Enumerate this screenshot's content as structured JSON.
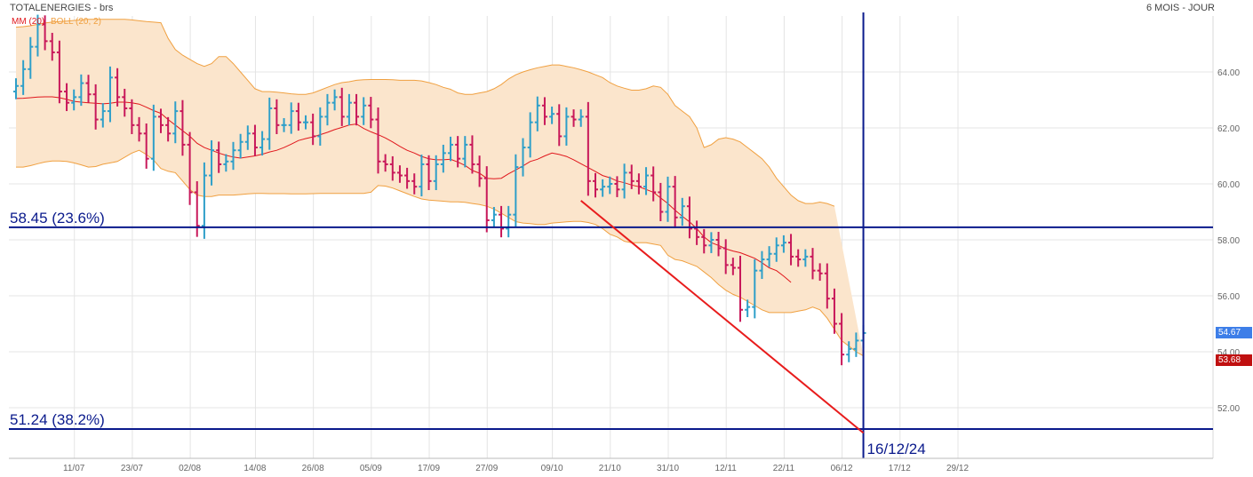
{
  "header": {
    "title": "TOTALENERGIES - brs",
    "period": "6 MOIS - JOUR",
    "mm_label": "MM (20)",
    "boll_label": "BOLL (20, 2)"
  },
  "colors": {
    "bull": "#2e9fc9",
    "bear": "#c8185a",
    "ma": "#e0171c",
    "boll_line": "#f0a040",
    "boll_fill": "#fbe5cc",
    "fib_line": "#0a1a8c",
    "trend": "#e81c1c",
    "grid": "#e4e4e4",
    "tag_last": "#3d7ee8",
    "tag_ref": "#c01010"
  },
  "annotations": {
    "fib_236": {
      "label": "58.45  (23.6%)",
      "price": 58.45
    },
    "fib_382": {
      "label": "51.24  (38.2%)",
      "price": 51.24
    },
    "date_marker": {
      "label": "16/12/24",
      "index": 117
    },
    "trendline": {
      "from": {
        "index": 78,
        "price": 59.4
      },
      "to": {
        "index": 117,
        "price": 51.1
      }
    }
  },
  "price_tags": {
    "last": "54.67",
    "ref": "53.68",
    "last_value": 54.67,
    "ref_value": 53.68
  },
  "chart_data": {
    "type": "ohlc",
    "title": "TOTALENERGIES - brs",
    "xlabel": "",
    "ylabel": "",
    "ylim": [
      50.5,
      66.2
    ],
    "yticks": [
      52.0,
      54.0,
      56.0,
      58.0,
      60.0,
      62.0,
      64.0
    ],
    "ytick_labels": [
      "52.00",
      "54.00",
      "56.00",
      "58.00",
      "60.00",
      "62.00",
      "64.00"
    ],
    "xtick_labels": [
      "11/07",
      "23/07",
      "02/08",
      "14/08",
      "26/08",
      "05/09",
      "17/09",
      "27/09",
      "09/10",
      "21/10",
      "31/10",
      "12/11",
      "22/11",
      "06/12",
      "17/12",
      "29/12"
    ],
    "xtick_index": [
      8,
      16,
      24,
      33,
      41,
      49,
      57,
      65,
      74,
      82,
      90,
      98,
      106,
      114,
      122,
      130
    ],
    "n_slots": 134,
    "close": [
      63.5,
      64.1,
      64.9,
      65.7,
      65.1,
      64.7,
      63.3,
      62.9,
      63.1,
      63.6,
      63.2,
      62.3,
      62.6,
      63.8,
      63.1,
      62.7,
      62.1,
      61.8,
      60.9,
      62.4,
      62.1,
      61.8,
      62.6,
      61.4,
      59.7,
      58.5,
      60.3,
      61.2,
      60.7,
      60.8,
      61.2,
      61.5,
      61.8,
      61.3,
      61.6,
      62.7,
      62.1,
      62.1,
      62.6,
      62.2,
      62.2,
      61.7,
      62.4,
      62.9,
      63.1,
      62.4,
      62.9,
      62.4,
      62.8,
      62.3,
      60.8,
      60.7,
      60.4,
      60.3,
      60.1,
      59.9,
      60.7,
      60.1,
      60.7,
      61.1,
      61.4,
      60.9,
      61.4,
      60.7,
      60.2,
      58.7,
      58.9,
      58.4,
      58.9,
      60.6,
      61.3,
      62.2,
      62.8,
      62.4,
      62.5,
      61.7,
      62.4,
      62.3,
      62.4,
      60.1,
      59.8,
      59.9,
      60.0,
      59.8,
      60.4,
      60.1,
      59.9,
      60.3,
      59.7,
      59.0,
      59.9,
      58.8,
      59.2,
      58.4,
      58.1,
      57.8,
      58.0,
      57.7,
      57.1,
      57.0,
      55.5,
      55.6,
      56.9,
      57.3,
      57.5,
      57.8,
      57.9,
      57.4,
      57.3,
      57.4,
      56.9,
      56.8,
      55.9,
      55.0,
      53.9,
      54.1,
      54.4,
      54.67
    ],
    "open": [
      63.3,
      63.5,
      64.1,
      64.9,
      65.7,
      65.1,
      64.7,
      63.3,
      62.9,
      63.1,
      63.6,
      63.2,
      62.3,
      62.6,
      63.8,
      63.1,
      62.7,
      62.1,
      61.8,
      60.9,
      62.4,
      62.1,
      61.8,
      62.6,
      61.4,
      59.7,
      58.5,
      60.3,
      61.2,
      60.7,
      60.8,
      61.2,
      61.5,
      61.8,
      61.3,
      61.6,
      62.7,
      62.1,
      62.1,
      62.6,
      62.2,
      62.2,
      61.7,
      62.4,
      62.9,
      63.1,
      62.4,
      62.9,
      62.4,
      62.8,
      62.3,
      60.8,
      60.7,
      60.4,
      60.3,
      60.1,
      59.9,
      60.7,
      60.1,
      60.7,
      61.1,
      61.4,
      60.9,
      61.4,
      60.7,
      60.2,
      58.7,
      58.9,
      58.4,
      58.9,
      60.6,
      61.3,
      62.2,
      62.8,
      62.4,
      62.5,
      61.7,
      62.4,
      62.3,
      62.4,
      60.1,
      59.8,
      59.9,
      60.0,
      59.8,
      60.4,
      60.1,
      59.9,
      60.3,
      59.7,
      59.0,
      59.9,
      58.8,
      59.2,
      58.4,
      58.1,
      57.8,
      58.0,
      57.7,
      57.1,
      57.0,
      55.5,
      55.6,
      56.9,
      57.3,
      57.5,
      57.8,
      57.9,
      57.4,
      57.3,
      57.4,
      56.9,
      56.8,
      55.9,
      55.0,
      53.9,
      54.1,
      54.4
    ],
    "ma20": [
      63.05,
      63.06,
      63.08,
      63.1,
      63.11,
      63.11,
      63.08,
      63.02,
      62.95,
      62.92,
      62.9,
      62.88,
      62.86,
      62.88,
      62.92,
      62.92,
      62.9,
      62.85,
      62.74,
      62.62,
      62.52,
      62.3,
      62.1,
      61.9,
      61.7,
      61.45,
      61.3,
      61.2,
      61.1,
      61.02,
      60.96,
      60.92,
      60.96,
      61.0,
      61.06,
      61.14,
      61.2,
      61.3,
      61.42,
      61.55,
      61.62,
      61.68,
      61.76,
      61.84,
      61.94,
      62.02,
      62.1,
      62.14,
      61.98,
      61.86,
      61.76,
      61.64,
      61.5,
      61.34,
      61.2,
      61.1,
      60.98,
      60.9,
      60.86,
      60.86,
      60.88,
      60.78,
      60.66,
      60.48,
      60.38,
      60.2,
      60.18,
      60.2,
      60.36,
      60.5,
      60.64,
      60.8,
      60.88,
      61.0,
      61.1,
      61.05,
      60.98,
      60.86,
      60.72,
      60.58,
      60.44,
      60.3,
      60.22,
      60.1,
      60.04,
      59.96,
      59.9,
      59.8,
      59.7,
      59.5,
      59.3,
      59.06,
      58.84,
      58.64,
      58.4,
      58.1,
      57.9,
      57.8,
      57.68,
      57.6,
      57.54,
      57.44,
      57.34,
      57.18,
      57.0,
      56.9,
      56.7,
      56.48
    ],
    "boll_upper": [
      65.6,
      65.62,
      65.65,
      65.7,
      65.75,
      65.78,
      65.8,
      65.82,
      65.84,
      65.86,
      65.88,
      65.88,
      65.88,
      65.88,
      65.88,
      65.88,
      65.86,
      65.83,
      65.8,
      65.78,
      65.76,
      65.2,
      64.8,
      64.6,
      64.45,
      64.3,
      64.2,
      64.3,
      64.55,
      64.55,
      64.3,
      64.0,
      63.7,
      63.4,
      63.3,
      63.3,
      63.28,
      63.25,
      63.22,
      63.2,
      63.2,
      63.25,
      63.35,
      63.45,
      63.55,
      63.62,
      63.65,
      63.7,
      63.72,
      63.73,
      63.73,
      63.73,
      63.72,
      63.7,
      63.7,
      63.7,
      63.68,
      63.62,
      63.55,
      63.45,
      63.38,
      63.25,
      63.2,
      63.2,
      63.25,
      63.3,
      63.4,
      63.55,
      63.75,
      63.9,
      64.0,
      64.08,
      64.15,
      64.2,
      64.25,
      64.25,
      64.2,
      64.15,
      64.08,
      64.0,
      63.9,
      63.8,
      63.62,
      63.5,
      63.42,
      63.35,
      63.35,
      63.4,
      63.5,
      63.45,
      63.2,
      62.8,
      62.6,
      62.4,
      62.0,
      61.3,
      61.4,
      61.6,
      61.65,
      61.6,
      61.5,
      61.3,
      61.1,
      60.9,
      60.6,
      60.2,
      59.9,
      59.6,
      59.4,
      59.3,
      59.3,
      59.35,
      59.3,
      59.2
    ],
    "boll_lower": [
      60.6,
      60.6,
      60.65,
      60.72,
      60.78,
      60.82,
      60.82,
      60.8,
      60.75,
      60.68,
      60.6,
      60.62,
      60.7,
      60.75,
      60.8,
      60.95,
      61.1,
      61.2,
      61.05,
      60.85,
      60.55,
      60.45,
      60.4,
      60.1,
      59.8,
      59.6,
      59.55,
      59.55,
      59.6,
      59.6,
      59.6,
      59.62,
      59.64,
      59.66,
      59.66,
      59.65,
      59.65,
      59.65,
      59.64,
      59.64,
      59.64,
      59.65,
      59.66,
      59.66,
      59.66,
      59.66,
      59.66,
      59.66,
      59.66,
      59.7,
      59.94,
      59.92,
      59.85,
      59.75,
      59.65,
      59.55,
      59.46,
      59.42,
      59.4,
      59.38,
      59.36,
      59.36,
      59.34,
      59.3,
      59.26,
      59.2,
      59.1,
      58.95,
      58.8,
      58.65,
      58.6,
      58.58,
      58.55,
      58.55,
      58.6,
      58.62,
      58.64,
      58.66,
      58.66,
      58.62,
      58.55,
      58.4,
      58.2,
      58.1,
      57.95,
      57.9,
      57.9,
      57.9,
      57.85,
      57.8,
      57.45,
      57.3,
      57.25,
      57.15,
      57.05,
      56.85,
      56.65,
      56.4,
      56.2,
      56.05,
      55.95,
      55.8,
      55.65,
      55.5,
      55.4,
      55.4,
      55.4,
      55.4,
      55.45,
      55.5,
      55.6,
      55.5,
      55.2,
      54.8,
      54.4,
      54.2,
      54.0,
      53.85
    ]
  }
}
